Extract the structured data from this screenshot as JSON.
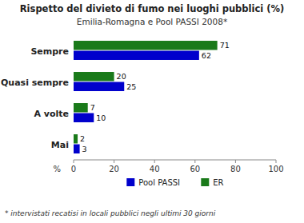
{
  "chart_data": {
    "type": "bar",
    "orientation": "horizontal",
    "title": "Rispetto del divieto di fumo nei luoghi pubblici (%)",
    "subtitle": "Emilia-Romagna e Pool PASSI 2008*",
    "categories": [
      "Sempre",
      "Quasi sempre",
      "A volte",
      "Mai"
    ],
    "series": [
      {
        "name": "Pool PASSI",
        "color": "#0000cc",
        "values": [
          62,
          25,
          10,
          3
        ]
      },
      {
        "name": "ER",
        "color": "#1a7a1a",
        "values": [
          71,
          20,
          7,
          2
        ]
      }
    ],
    "x_label": "%",
    "xlim": [
      0,
      100
    ],
    "xticks": [
      0,
      20,
      40,
      60,
      80,
      100
    ],
    "data_labels": true,
    "grid": false,
    "legend": "bottom",
    "footnote": "* intervistati recatisi in locali pubblici negli ultimi 30 giorni"
  }
}
